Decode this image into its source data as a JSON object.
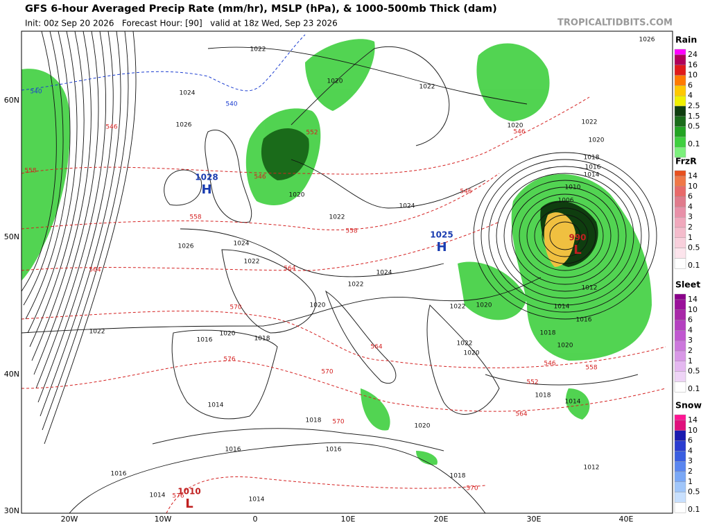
{
  "header": {
    "title": "GFS 6-hour Averaged Precip Rate (mm/hr), MSLP (hPa), & 1000-500mb Thick (dam)",
    "subtitle": "Init: 00z Sep 20 2026   Forecast Hour: [90]   valid at 18z Wed, Sep 23 2026",
    "watermark": "TROPICALTIDBITS.COM"
  },
  "axes": {
    "lat_labels": [
      "60N",
      "50N",
      "40N",
      "30N"
    ],
    "lon_labels": [
      "20W",
      "10W",
      "0",
      "10E",
      "20E",
      "30E",
      "40E"
    ]
  },
  "legend": [
    {
      "title": "Rain",
      "labels": [
        "24",
        "16",
        "10",
        "6",
        "4",
        "2.5",
        "1.5",
        "0.5",
        "0.1"
      ],
      "colors": [
        "#ff00ff",
        "#b0005a",
        "#e01a1a",
        "#ff7a00",
        "#ffc800",
        "#f0f000",
        "#0f3d0f",
        "#1a6b1a",
        "#23a323",
        "#3fcf3f",
        "#7cf07c"
      ]
    },
    {
      "title": "FrzR",
      "labels": [
        "14",
        "10",
        "6",
        "4",
        "3",
        "2",
        "1",
        "0.5",
        "0.1"
      ],
      "colors": [
        "#e8501e",
        "#f07848",
        "#e86a6a",
        "#e07b8c",
        "#e890a8",
        "#f0a8bc",
        "#f4bccc",
        "#f8d0dc",
        "#fce4ec",
        "#ffffff"
      ]
    },
    {
      "title": "Sleet",
      "labels": [
        "14",
        "10",
        "6",
        "4",
        "3",
        "2",
        "1",
        "0.5",
        "0.1"
      ],
      "colors": [
        "#8a008a",
        "#9a109a",
        "#a828a8",
        "#b440c0",
        "#c058d0",
        "#cc78dc",
        "#d898e6",
        "#e4b8f0",
        "#eed4f6",
        "#ffffff"
      ]
    },
    {
      "title": "Snow",
      "labels": [
        "14",
        "10",
        "6",
        "4",
        "3",
        "2",
        "1",
        "0.5",
        "0.1"
      ],
      "colors": [
        "#ff1493",
        "#e0107c",
        "#1a1ab0",
        "#2a3cd0",
        "#3a5ee0",
        "#5a86f0",
        "#7aa8f6",
        "#a0c6fa",
        "#c8e0fe",
        "#ffffff"
      ]
    }
  ],
  "isobars": [
    "1022",
    "1026",
    "1024",
    "1020",
    "1022",
    "1026",
    "1020",
    "1022",
    "1020",
    "1018",
    "1016",
    "1014",
    "1010",
    "1006",
    "1024",
    "1022",
    "1020",
    "1026",
    "1024",
    "1022",
    "1024",
    "1022",
    "1020",
    "1022",
    "1020",
    "1012",
    "1014",
    "1016",
    "1018",
    "1020",
    "1022",
    "1020",
    "1016",
    "1018",
    "1022",
    "1020",
    "1018",
    "1014",
    "1014",
    "1018",
    "1020",
    "1016",
    "1016",
    "1016",
    "1018",
    "1012",
    "1014",
    "1014"
  ],
  "thickness": [
    "546",
    "552",
    "546",
    "558",
    "558",
    "546",
    "546",
    "564",
    "564",
    "570",
    "576",
    "570",
    "564",
    "570",
    "552",
    "558",
    "546",
    "564",
    "570",
    "576",
    "558"
  ],
  "thickness_540": [
    "540",
    "540"
  ],
  "centers": [
    {
      "letter": "H",
      "value": "1028"
    },
    {
      "letter": "H",
      "value": "1025"
    },
    {
      "letter": "L",
      "value": "990"
    },
    {
      "letter": "L",
      "value": "1010"
    }
  ]
}
